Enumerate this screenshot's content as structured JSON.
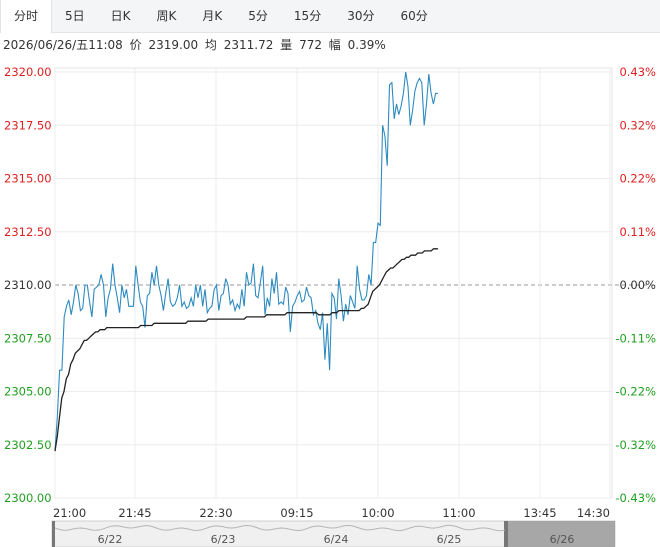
{
  "tabs": [
    {
      "label": "分时",
      "active": true
    },
    {
      "label": "5日"
    },
    {
      "label": "日K"
    },
    {
      "label": "周K"
    },
    {
      "label": "月K"
    },
    {
      "label": "5分"
    },
    {
      "label": "15分"
    },
    {
      "label": "30分"
    },
    {
      "label": "60分"
    }
  ],
  "info": {
    "datetime": "2026/06/26/五11:08",
    "price_label": "价",
    "price": "2319.00",
    "avg_label": "均",
    "avg": "2311.72",
    "vol_label": "量",
    "vol": "772",
    "amp_label": "幅",
    "amp": "0.39%"
  },
  "colors": {
    "price_line": "#2e8bc0",
    "avg_line": "#222222",
    "up": "#e02020",
    "down": "#20a020",
    "flat": "#333333"
  },
  "chart_data": {
    "type": "line",
    "title": "",
    "ylim": [
      2300.0,
      2320.0
    ],
    "prev_close": 2310.0,
    "y_ticks": [
      "2320.00",
      "2317.50",
      "2315.00",
      "2312.50",
      "2310.00",
      "2307.50",
      "2305.00",
      "2302.50",
      "2300.00"
    ],
    "pct_ticks": [
      "0.43%",
      "0.32%",
      "0.22%",
      "0.11%",
      "0.00%",
      "-0.11%",
      "-0.22%",
      "-0.32%",
      "-0.43%"
    ],
    "x_ticks": [
      "21:00",
      "21:45",
      "22:30",
      "09:15",
      "10:00",
      "11:00",
      "13:45",
      "14:30"
    ],
    "grid": true,
    "series": [
      {
        "values": [
          2302.2,
          2303.8,
          2306,
          2306,
          2308.5,
          2309,
          2309.3,
          2308.6,
          2309.2,
          2310,
          2309.6,
          2308.8,
          2308.9,
          2310,
          2310,
          2309.2,
          2308.5,
          2309.8,
          2309.9,
          2310,
          2310.5,
          2310,
          2308.5,
          2309.4,
          2309.8,
          2311,
          2310,
          2309.4,
          2308.7,
          2310,
          2309.4,
          2309.8,
          2309,
          2309,
          2309,
          2310.9,
          2310,
          2309.2,
          2309,
          2308,
          2309.5,
          2309.6,
          2310.6,
          2310,
          2310.9,
          2310,
          2309.5,
          2308.8,
          2309.6,
          2310.3,
          2309.2,
          2309,
          2309.1,
          2309.4,
          2310,
          2309,
          2309.2,
          2308.9,
          2309,
          2309.4,
          2309,
          2310,
          2309.4,
          2310,
          2309,
          2309.8,
          2308.7,
          2308.9,
          2309,
          2309.8,
          2310,
          2308.8,
          2309.5,
          2309.6,
          2310.3,
          2310,
          2309.1,
          2309.3,
          2308.8,
          2309.1,
          2308.9,
          2309.8,
          2309,
          2310.6,
          2310,
          2310.1,
          2311,
          2309.5,
          2309.4,
          2310.1,
          2310.9,
          2308.6,
          2309.4,
          2309,
          2310.3,
          2309.6,
          2310.6,
          2309.1,
          2309.2,
          2309.1,
          2309.9,
          2309.6,
          2307.8,
          2309,
          2309.2,
          2309.5,
          2309.7,
          2309.2,
          2309.3,
          2309.9,
          2309.5,
          2309.4,
          2308.6,
          2308.8,
          2308.2,
          2307.9,
          2308.7,
          2306.5,
          2308.2,
          2306,
          2309.6,
          2309.4,
          2308.4,
          2310.3,
          2309.5,
          2308.3,
          2309.1,
          2308.6,
          2309.5,
          2309.2,
          2308.9,
          2310.9,
          2309.8,
          2309.3,
          2309.3,
          2309.5,
          2310.5,
          2310,
          2312,
          2312,
          2312.9,
          2312.8,
          2317.5,
          2317,
          2315.6,
          2319.4,
          2319.5,
          2317.8,
          2318.5,
          2318,
          2318.4,
          2319,
          2320,
          2319.3,
          2317.5,
          2318.2,
          2319.1,
          2319.5,
          2319.7,
          2319.5,
          2317.5,
          2318.5,
          2319.9,
          2319,
          2318.5,
          2319,
          2319
        ]
      },
      {
        "values": [
          2302.2,
          2302.9,
          2303.8,
          2304.7,
          2305,
          2305.6,
          2305.8,
          2306.3,
          2306.5,
          2306.8,
          2306.9,
          2307,
          2307.2,
          2307.4,
          2307.4,
          2307.5,
          2307.6,
          2307.7,
          2307.8,
          2307.8,
          2307.9,
          2307.9,
          2307.9,
          2308,
          2308,
          2308,
          2308,
          2308,
          2308,
          2308,
          2308,
          2308,
          2308,
          2308,
          2308,
          2308,
          2308,
          2308,
          2308.1,
          2308.1,
          2308.1,
          2308.1,
          2308.1,
          2308.1,
          2308.2,
          2308.2,
          2308.2,
          2308.2,
          2308.2,
          2308.2,
          2308.2,
          2308.2,
          2308.2,
          2308.2,
          2308.2,
          2308.2,
          2308.2,
          2308.2,
          2308.2,
          2308.3,
          2308.3,
          2308.3,
          2308.3,
          2308.3,
          2308.3,
          2308.3,
          2308.3,
          2308.3,
          2308.4,
          2308.4,
          2308.4,
          2308.4,
          2308.4,
          2308.4,
          2308.4,
          2308.4,
          2308.4,
          2308.4,
          2308.4,
          2308.4,
          2308.4,
          2308.4,
          2308.4,
          2308.4,
          2308.4,
          2308.5,
          2308.5,
          2308.5,
          2308.5,
          2308.5,
          2308.5,
          2308.5,
          2308.5,
          2308.5,
          2308.6,
          2308.6,
          2308.6,
          2308.6,
          2308.6,
          2308.6,
          2308.6,
          2308.6,
          2308.6,
          2308.7,
          2308.7,
          2308.7,
          2308.7,
          2308.7,
          2308.7,
          2308.7,
          2308.7,
          2308.7,
          2308.7,
          2308.7,
          2308.7,
          2308.7,
          2308.7,
          2308.6,
          2308.6,
          2308.6,
          2308.6,
          2308.6,
          2308.6,
          2308.7,
          2308.7,
          2308.7,
          2308.8,
          2308.8,
          2308.8,
          2308.8,
          2308.8,
          2308.8,
          2308.8,
          2308.8,
          2308.8,
          2308.8,
          2308.9,
          2308.9,
          2309,
          2309.1,
          2309.4,
          2309.7,
          2309.8,
          2309.9,
          2310,
          2310.2,
          2310.4,
          2310.6,
          2310.7,
          2310.8,
          2310.8,
          2310.9,
          2311,
          2311.1,
          2311.2,
          2311.2,
          2311.3,
          2311.3,
          2311.4,
          2311.4,
          2311.4,
          2311.5,
          2311.5,
          2311.5,
          2311.6,
          2311.6,
          2311.6,
          2311.6,
          2311.7,
          2311.7,
          2311.7
        ]
      }
    ],
    "overview": {
      "date_labels": [
        "6/22",
        "6/23",
        "6/24",
        "6/25",
        "6/26"
      ]
    }
  }
}
